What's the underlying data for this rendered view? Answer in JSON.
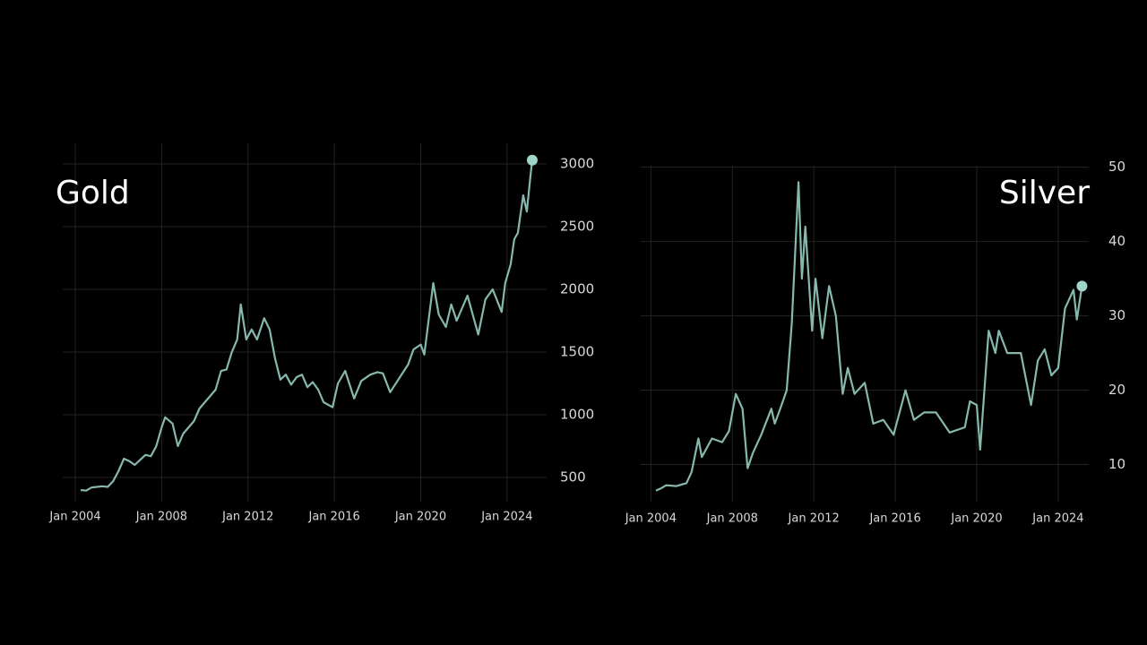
{
  "chart_data": [
    {
      "type": "line",
      "title": "Gold",
      "color": "#86b8ad",
      "grid": true,
      "last_point_marker": true,
      "xlim": [
        "2003-06",
        "2025-11"
      ],
      "xticks": [
        {
          "value": "2004-01",
          "label": "Jan 2004"
        },
        {
          "value": "2008-01",
          "label": "Jan 2008"
        },
        {
          "value": "2012-01",
          "label": "Jan 2012"
        },
        {
          "value": "2016-01",
          "label": "Jan 2016"
        },
        {
          "value": "2020-01",
          "label": "Jan 2020"
        },
        {
          "value": "2024-01",
          "label": "Jan 2024"
        }
      ],
      "ylim": [
        307,
        3164
      ],
      "yticks": [
        500,
        1000,
        1500,
        2000,
        2500,
        3000
      ],
      "x": [
        "2004-04",
        "2004-07",
        "2004-10",
        "2005-01",
        "2005-04",
        "2005-07",
        "2005-10",
        "2006-01",
        "2006-04",
        "2006-07",
        "2006-10",
        "2007-01",
        "2007-04",
        "2007-07",
        "2007-10",
        "2008-01",
        "2008-03",
        "2008-07",
        "2008-10",
        "2009-01",
        "2009-04",
        "2009-07",
        "2009-10",
        "2010-01",
        "2010-04",
        "2010-07",
        "2010-10",
        "2011-01",
        "2011-04",
        "2011-07",
        "2011-09",
        "2011-12",
        "2012-03",
        "2012-06",
        "2012-10",
        "2013-01",
        "2013-04",
        "2013-07",
        "2013-10",
        "2014-01",
        "2014-04",
        "2014-07",
        "2014-10",
        "2015-01",
        "2015-04",
        "2015-07",
        "2015-12",
        "2016-03",
        "2016-07",
        "2016-12",
        "2017-04",
        "2017-09",
        "2018-01",
        "2018-04",
        "2018-08",
        "2019-01",
        "2019-06",
        "2019-09",
        "2020-01",
        "2020-03",
        "2020-08",
        "2020-11",
        "2021-03",
        "2021-06",
        "2021-09",
        "2022-03",
        "2022-09",
        "2023-01",
        "2023-05",
        "2023-10",
        "2023-12",
        "2024-03",
        "2024-05",
        "2024-07",
        "2024-10",
        "2024-12",
        "2025-02",
        "2025-03"
      ],
      "values": [
        400,
        395,
        420,
        425,
        430,
        425,
        470,
        550,
        650,
        630,
        600,
        640,
        680,
        670,
        750,
        900,
        980,
        930,
        750,
        850,
        900,
        950,
        1050,
        1100,
        1150,
        1200,
        1350,
        1360,
        1500,
        1600,
        1880,
        1600,
        1680,
        1600,
        1770,
        1680,
        1450,
        1280,
        1320,
        1240,
        1300,
        1320,
        1220,
        1260,
        1200,
        1100,
        1060,
        1250,
        1350,
        1130,
        1270,
        1320,
        1340,
        1330,
        1180,
        1290,
        1400,
        1520,
        1560,
        1480,
        2050,
        1800,
        1700,
        1880,
        1750,
        1950,
        1640,
        1920,
        2000,
        1820,
        2050,
        2200,
        2400,
        2450,
        2750,
        2620,
        2900,
        3030
      ]
    },
    {
      "type": "line",
      "title": "Silver",
      "color": "#86b8ad",
      "grid": true,
      "last_point_marker": true,
      "xlim": [
        "2003-07",
        "2025-07"
      ],
      "xticks": [
        {
          "value": "2004-01",
          "label": "Jan 2004"
        },
        {
          "value": "2008-01",
          "label": "Jan 2008"
        },
        {
          "value": "2012-01",
          "label": "Jan 2012"
        },
        {
          "value": "2016-01",
          "label": "Jan 2016"
        },
        {
          "value": "2020-01",
          "label": "Jan 2020"
        },
        {
          "value": "2024-01",
          "label": "Jan 2024"
        }
      ],
      "ylim": [
        5,
        50.2
      ],
      "yticks": [
        10,
        20,
        30,
        40,
        50
      ],
      "x": [
        "2004-04",
        "2004-07",
        "2004-10",
        "2005-04",
        "2005-10",
        "2006-01",
        "2006-05",
        "2006-07",
        "2007-01",
        "2007-07",
        "2007-11",
        "2008-03",
        "2008-07",
        "2008-10",
        "2009-01",
        "2009-06",
        "2009-12",
        "2010-02",
        "2010-06",
        "2010-09",
        "2010-12",
        "2011-04",
        "2011-06",
        "2011-08",
        "2011-12",
        "2012-02",
        "2012-06",
        "2012-10",
        "2013-02",
        "2013-06",
        "2013-09",
        "2014-01",
        "2014-07",
        "2014-12",
        "2015-06",
        "2015-12",
        "2016-07",
        "2016-12",
        "2017-06",
        "2018-01",
        "2018-09",
        "2019-06",
        "2019-09",
        "2020-01",
        "2020-03",
        "2020-08",
        "2020-12",
        "2021-02",
        "2021-07",
        "2022-03",
        "2022-09",
        "2023-01",
        "2023-05",
        "2023-09",
        "2024-01",
        "2024-05",
        "2024-10",
        "2024-12",
        "2025-03"
      ],
      "values": [
        6.5,
        6.8,
        7.2,
        7.1,
        7.5,
        9,
        13.5,
        11,
        13.5,
        13,
        14.5,
        19.5,
        17.5,
        9.5,
        11.5,
        14,
        17.5,
        15.5,
        18,
        20,
        29,
        48,
        35,
        42,
        28,
        35,
        27,
        34,
        30,
        19.5,
        23,
        19.5,
        21,
        15.5,
        16,
        14,
        20,
        16,
        17,
        17,
        14.3,
        15,
        18.5,
        18,
        12,
        28,
        25,
        28,
        25,
        25,
        18,
        24,
        25.5,
        22,
        23,
        31,
        33.5,
        29.5,
        34
      ]
    }
  ]
}
